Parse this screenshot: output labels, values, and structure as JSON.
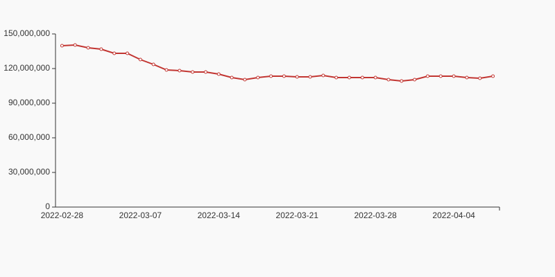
{
  "chart_data": {
    "type": "line",
    "categories": [
      "2022-02-28",
      null,
      null,
      null,
      null,
      null,
      "2022-03-07",
      null,
      null,
      null,
      null,
      null,
      "2022-03-14",
      null,
      null,
      null,
      null,
      null,
      "2022-03-21",
      null,
      null,
      null,
      null,
      null,
      "2022-03-28",
      null,
      null,
      null,
      null,
      null,
      "2022-04-04",
      null,
      null,
      null
    ],
    "series": [
      {
        "color": "#c23531",
        "values": [
          139800000,
          140400000,
          138000000,
          136800000,
          133200000,
          133200000,
          127800000,
          123600000,
          118800000,
          118200000,
          117000000,
          117000000,
          115200000,
          112200000,
          110400000,
          112200000,
          113400000,
          113400000,
          112800000,
          112800000,
          114000000,
          112200000,
          112200000,
          112200000,
          112200000,
          110400000,
          109200000,
          110400000,
          113400000,
          113400000,
          113400000,
          112200000,
          111600000,
          113400000
        ]
      }
    ],
    "ylim": [
      0,
      150000000
    ],
    "yticks": [
      0,
      {
        "value": 30000000,
        "label": "30,000,000"
      },
      {
        "value": 60000000,
        "label": "60,000,000"
      },
      {
        "value": 90000000,
        "label": "90,000,000"
      },
      {
        "value": 120000000,
        "label": "120,000,000"
      },
      {
        "value": 150000000,
        "label": "150,000,000"
      }
    ]
  }
}
